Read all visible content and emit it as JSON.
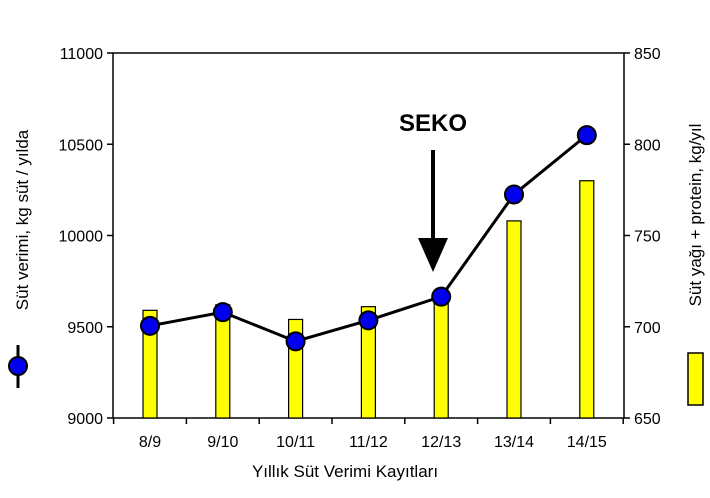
{
  "chart_data": {
    "type": "bar+line",
    "categories": [
      "8/9",
      "9/10",
      "10/11",
      "11/12",
      "12/13",
      "13/14",
      "14/15"
    ],
    "line_series": {
      "values": [
        9505,
        9580,
        9420,
        9535,
        9665,
        10225,
        10550
      ],
      "axis": "left",
      "color": "#0000ee",
      "line_color": "#000000"
    },
    "bar_series": {
      "values": [
        709,
        712,
        704,
        711,
        716,
        758,
        780
      ],
      "axis": "right",
      "color": "#ffff00",
      "edge_color": "#000000"
    },
    "y_left": {
      "label": "Süt verimi, kg süt / yılda",
      "ylim": [
        9000,
        11000
      ],
      "ticks": [
        "9000",
        "9500",
        "10000",
        "10500",
        "11000"
      ]
    },
    "y_right": {
      "label": "Süt yağı + protein, kg/yıl",
      "ylim": [
        650,
        850
      ],
      "ticks": [
        "650",
        "700",
        "750",
        "800",
        "850"
      ]
    },
    "xlabel": "Yıllık Süt Verimi Kayıtları",
    "annotation": {
      "text": "SEKO",
      "target_category": "12/13"
    },
    "grid": false
  }
}
